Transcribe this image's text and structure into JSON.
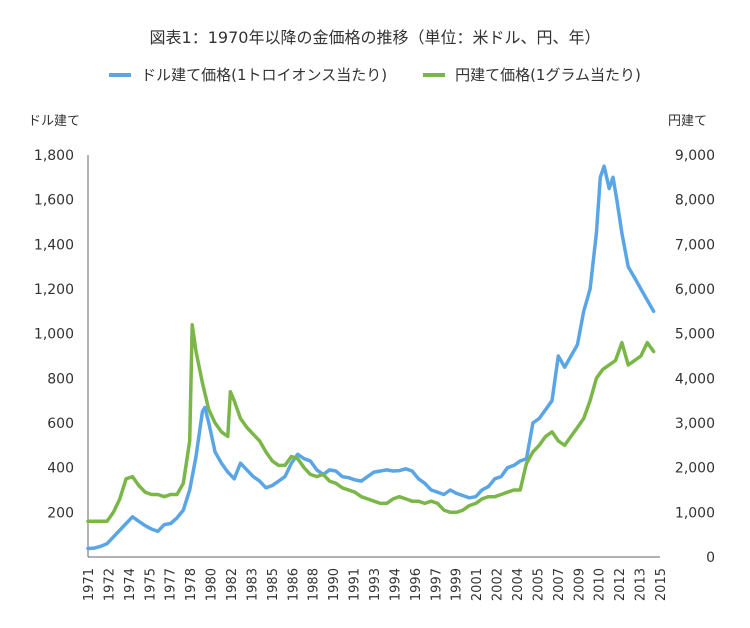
{
  "chart_data": {
    "type": "line",
    "title": "図表1：1970年以降の金価格の推移（単位：米ドル、円、年）",
    "left_axis_label": "ドル建て",
    "right_axis_label": "円建て",
    "ylim_left": [
      0,
      1800
    ],
    "yticks_left": [
      "",
      "200",
      "400",
      "600",
      "800",
      "1,000",
      "1,200",
      "1,400",
      "1,600",
      "1,800"
    ],
    "ylim_right": [
      0,
      9000
    ],
    "yticks_right": [
      "0",
      "1,000",
      "2,000",
      "3,000",
      "4,000",
      "5,000",
      "6,000",
      "7,000",
      "8,000",
      "9,000"
    ],
    "xlim": [
      1971,
      2016
    ],
    "xticks": [
      "1971",
      "1972",
      "1974",
      "1975",
      "1977",
      "1978",
      "1980",
      "1982",
      "1983",
      "1985",
      "1986",
      "1988",
      "1990",
      "1991",
      "1993",
      "1994",
      "1996",
      "1997",
      "1999",
      "2001",
      "2002",
      "2004",
      "2005",
      "2007",
      "2009",
      "2010",
      "2012",
      "2013",
      "2015"
    ],
    "legend_position": "top",
    "grid": false,
    "series": [
      {
        "name": "ドル建て価格(1トロイオンス当たり)",
        "axis": "left",
        "color": "#5aa5e6",
        "x": [
          1971,
          1971.5,
          1972,
          1972.5,
          1973,
          1973.5,
          1974,
          1974.5,
          1975,
          1975.5,
          1976,
          1976.5,
          1977,
          1977.5,
          1978,
          1978.5,
          1979,
          1979.5,
          1980,
          1980.2,
          1980.5,
          1981,
          1981.5,
          1982,
          1982.5,
          1983,
          1983.5,
          1984,
          1984.5,
          1985,
          1985.5,
          1986,
          1986.5,
          1987,
          1987.5,
          1988,
          1988.5,
          1989,
          1989.5,
          1990,
          1990.5,
          1991,
          1991.5,
          1992,
          1992.5,
          1993,
          1993.5,
          1994,
          1994.5,
          1995,
          1995.5,
          1996,
          1996.5,
          1997,
          1997.5,
          1998,
          1998.5,
          1999,
          1999.5,
          2000,
          2000.5,
          2001,
          2001.5,
          2002,
          2002.5,
          2003,
          2003.5,
          2004,
          2004.5,
          2005,
          2005.5,
          2006,
          2006.5,
          2007,
          2007.5,
          2008,
          2008.5,
          2009,
          2009.5,
          2010,
          2010.5,
          2011,
          2011.3,
          2011.6,
          2012,
          2012.3,
          2012.6,
          2013,
          2013.5,
          2014,
          2014.5,
          2015,
          2015.5
        ],
        "values": [
          38,
          40,
          48,
          60,
          90,
          120,
          150,
          180,
          160,
          140,
          125,
          115,
          145,
          150,
          175,
          210,
          300,
          450,
          650,
          670,
          600,
          470,
          420,
          380,
          350,
          420,
          390,
          360,
          340,
          310,
          320,
          340,
          360,
          420,
          460,
          440,
          430,
          390,
          370,
          390,
          385,
          360,
          355,
          345,
          340,
          360,
          380,
          385,
          390,
          385,
          387,
          395,
          385,
          350,
          330,
          300,
          290,
          280,
          300,
          285,
          275,
          265,
          270,
          300,
          315,
          350,
          360,
          400,
          410,
          430,
          440,
          600,
          620,
          660,
          700,
          900,
          850,
          900,
          950,
          1100,
          1200,
          1450,
          1700,
          1750,
          1650,
          1700,
          1600,
          1450,
          1300,
          1250,
          1200,
          1150,
          1100
        ]
      },
      {
        "name": "円建て価格(1グラム当たり)",
        "axis": "right",
        "color": "#7ab648",
        "x": [
          1971,
          1971.5,
          1972,
          1972.5,
          1973,
          1973.5,
          1974,
          1974.5,
          1975,
          1975.5,
          1976,
          1976.5,
          1977,
          1977.5,
          1978,
          1978.5,
          1979,
          1979.2,
          1979.5,
          1980,
          1980.5,
          1981,
          1981.5,
          1982,
          1982.2,
          1982.5,
          1983,
          1983.5,
          1984,
          1984.5,
          1985,
          1985.5,
          1986,
          1986.5,
          1987,
          1987.5,
          1988,
          1988.5,
          1989,
          1989.5,
          1990,
          1990.5,
          1991,
          1991.5,
          1992,
          1992.5,
          1993,
          1993.5,
          1994,
          1994.5,
          1995,
          1995.5,
          1996,
          1996.5,
          1997,
          1997.5,
          1998,
          1998.5,
          1999,
          1999.5,
          2000,
          2000.5,
          2001,
          2001.5,
          2002,
          2002.5,
          2003,
          2003.5,
          2004,
          2004.5,
          2005,
          2005.5,
          2006,
          2006.5,
          2007,
          2007.5,
          2008,
          2008.5,
          2009,
          2009.5,
          2010,
          2010.5,
          2011,
          2011.5,
          2012,
          2012.5,
          2013,
          2013.5,
          2014,
          2014.5,
          2015,
          2015.5
        ],
        "values": [
          800,
          800,
          800,
          800,
          1000,
          1300,
          1750,
          1800,
          1600,
          1450,
          1400,
          1400,
          1350,
          1400,
          1400,
          1650,
          2600,
          5200,
          4600,
          3900,
          3300,
          3000,
          2800,
          2700,
          3700,
          3500,
          3100,
          2900,
          2750,
          2600,
          2350,
          2150,
          2050,
          2050,
          2250,
          2200,
          2000,
          1850,
          1800,
          1850,
          1700,
          1650,
          1550,
          1500,
          1450,
          1350,
          1300,
          1250,
          1200,
          1200,
          1300,
          1350,
          1300,
          1250,
          1250,
          1200,
          1250,
          1200,
          1050,
          1000,
          1000,
          1050,
          1150,
          1200,
          1300,
          1350,
          1350,
          1400,
          1450,
          1500,
          1500,
          2100,
          2350,
          2500,
          2700,
          2800,
          2600,
          2500,
          2700,
          2900,
          3100,
          3500,
          4000,
          4200,
          4300,
          4400,
          4800,
          4300,
          4400,
          4500,
          4800,
          4600
        ]
      }
    ]
  }
}
